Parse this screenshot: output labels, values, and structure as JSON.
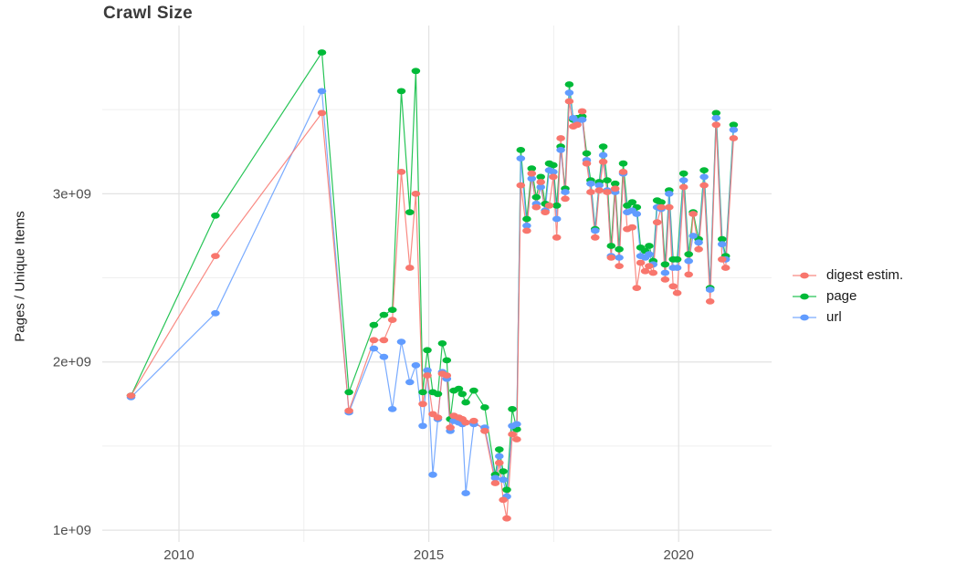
{
  "page": {
    "background_color": "#ffffff",
    "grid_major_color": "#e3e3e3",
    "grid_minor_color": "#efefef",
    "tick_label_color": "#4d4d4d"
  },
  "chart_data": {
    "type": "line",
    "title": "Crawl Size",
    "xlabel": "",
    "ylabel": "Pages / Unique Items",
    "grid": true,
    "legend_position": "right",
    "xlim": [
      2008.465,
      2021.86
    ],
    "ylim": [
      0.93,
      4.0
    ],
    "y_unit": "1e9 (values below are billions)",
    "x_axis": {
      "major_ticks": [
        2010,
        2015,
        2020
      ],
      "major_tick_labels": [
        "2010",
        "2015",
        "2020"
      ],
      "minor_gridlines": [
        2012.5,
        2017.5
      ]
    },
    "y_axis": {
      "major_ticks": [
        1,
        2,
        3
      ],
      "major_tick_labels": [
        "1e+09",
        "2e+09",
        "3e+09"
      ],
      "minor_gridlines": [
        1.5,
        2.5,
        3.5
      ]
    },
    "x": [
      2009.04,
      2010.73,
      2012.86,
      2013.4,
      2013.9,
      2014.1,
      2014.27,
      2014.45,
      2014.62,
      2014.74,
      2014.88,
      2014.97,
      2015.08,
      2015.18,
      2015.27,
      2015.36,
      2015.43,
      2015.5,
      2015.6,
      2015.67,
      2015.74,
      2015.9,
      2016.12,
      2016.33,
      2016.41,
      2016.49,
      2016.56,
      2016.67,
      2016.76,
      2016.84,
      2016.96,
      2017.06,
      2017.15,
      2017.24,
      2017.33,
      2017.41,
      2017.49,
      2017.56,
      2017.64,
      2017.73,
      2017.81,
      2017.89,
      2017.97,
      2018.07,
      2018.16,
      2018.24,
      2018.33,
      2018.41,
      2018.49,
      2018.57,
      2018.65,
      2018.73,
      2018.81,
      2018.89,
      2018.97,
      2019.07,
      2019.16,
      2019.24,
      2019.33,
      2019.41,
      2019.49,
      2019.57,
      2019.65,
      2019.73,
      2019.81,
      2019.89,
      2019.97,
      2020.1,
      2020.2,
      2020.29,
      2020.4,
      2020.51,
      2020.63,
      2020.75,
      2020.87,
      2020.94,
      2021.1
    ],
    "series": [
      {
        "name": "page",
        "color": "#00BA38",
        "values": [
          1.8,
          2.87,
          3.84,
          1.82,
          2.22,
          2.28,
          2.31,
          3.61,
          2.89,
          3.73,
          1.82,
          2.07,
          1.82,
          1.81,
          2.11,
          2.01,
          1.66,
          1.83,
          1.84,
          1.81,
          1.76,
          1.83,
          1.73,
          1.33,
          1.48,
          1.35,
          1.24,
          1.72,
          1.6,
          3.26,
          2.85,
          3.15,
          2.98,
          3.1,
          2.94,
          3.18,
          3.17,
          2.93,
          3.28,
          3.03,
          3.65,
          3.44,
          3.45,
          3.46,
          3.24,
          3.08,
          2.79,
          3.07,
          3.28,
          3.08,
          2.69,
          3.06,
          2.67,
          3.18,
          2.93,
          2.95,
          2.92,
          2.68,
          2.66,
          2.69,
          2.6,
          2.96,
          2.95,
          2.58,
          3.02,
          2.61,
          2.61,
          3.12,
          2.64,
          2.89,
          2.73,
          3.14,
          2.44,
          3.48,
          2.73,
          2.63,
          3.41
        ]
      },
      {
        "name": "url",
        "color": "#619CFF",
        "values": [
          1.79,
          2.29,
          3.61,
          1.7,
          2.08,
          2.03,
          1.72,
          2.12,
          1.88,
          1.98,
          1.62,
          1.95,
          1.33,
          1.66,
          1.94,
          1.9,
          1.59,
          1.65,
          1.64,
          1.63,
          1.22,
          1.63,
          1.61,
          1.31,
          1.44,
          1.3,
          1.2,
          1.62,
          1.63,
          3.21,
          2.81,
          3.09,
          2.94,
          3.04,
          2.9,
          3.14,
          3.13,
          2.85,
          3.26,
          3.01,
          3.6,
          3.45,
          3.43,
          3.44,
          3.2,
          3.06,
          2.78,
          3.05,
          3.23,
          3.02,
          2.63,
          3.01,
          2.62,
          3.12,
          2.89,
          2.9,
          2.88,
          2.63,
          2.62,
          2.64,
          2.58,
          2.92,
          2.91,
          2.53,
          3.0,
          2.56,
          2.56,
          3.08,
          2.6,
          2.75,
          2.71,
          3.1,
          2.43,
          3.45,
          2.7,
          2.61,
          3.38
        ]
      },
      {
        "name": "digest estim.",
        "color": "#F8766D",
        "values": [
          1.8,
          2.63,
          3.48,
          1.71,
          2.13,
          2.13,
          2.25,
          3.13,
          2.56,
          3.0,
          1.75,
          1.92,
          1.69,
          1.67,
          1.93,
          1.92,
          1.61,
          1.68,
          1.67,
          1.66,
          1.64,
          1.65,
          1.59,
          1.28,
          1.4,
          1.18,
          1.07,
          1.57,
          1.54,
          3.05,
          2.78,
          3.12,
          2.92,
          3.07,
          2.89,
          2.93,
          3.1,
          2.74,
          3.33,
          2.97,
          3.55,
          3.4,
          3.41,
          3.49,
          3.18,
          3.01,
          2.74,
          3.02,
          3.19,
          3.01,
          2.62,
          3.03,
          2.57,
          3.13,
          2.79,
          2.8,
          2.44,
          2.59,
          2.54,
          2.57,
          2.53,
          2.83,
          2.92,
          2.49,
          2.92,
          2.45,
          2.41,
          3.04,
          2.52,
          2.88,
          2.67,
          3.05,
          2.36,
          3.41,
          2.61,
          2.56,
          3.33
        ]
      }
    ],
    "legend": [
      {
        "label": "digest estim.",
        "color": "#F8766D"
      },
      {
        "label": "page",
        "color": "#00BA38"
      },
      {
        "label": "url",
        "color": "#619CFF"
      }
    ]
  }
}
